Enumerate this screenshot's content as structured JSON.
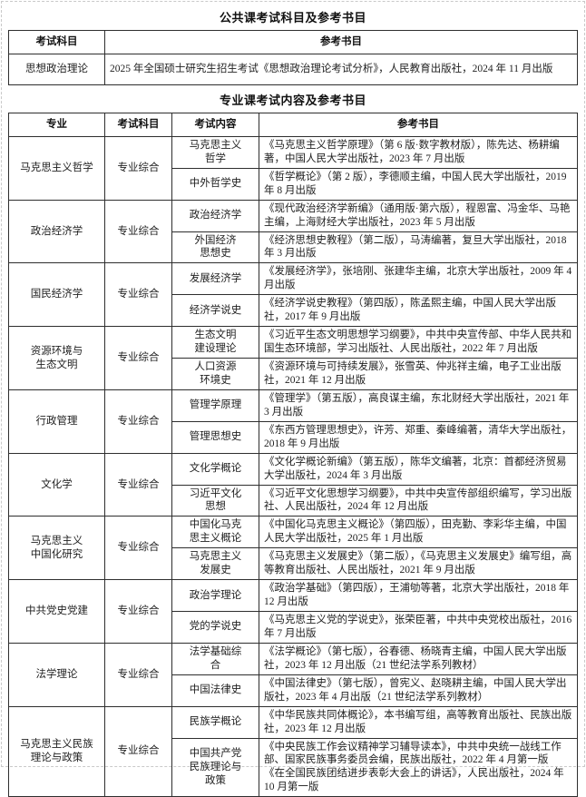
{
  "titles": {
    "public": "公共课考试科目及参考书目",
    "professional": "专业课考试内容及参考书目"
  },
  "public_table": {
    "headers": [
      "考试科目",
      "参考书目"
    ],
    "rows": [
      {
        "subject": "思想政治理论",
        "books": "2025 年全国硕士研究生招生考试《思想政治理论考试分析》，人民教育出版社，2024 年 11 月出版"
      }
    ]
  },
  "professional_table": {
    "headers": [
      "专业",
      "考试科目",
      "考试内容",
      "参考书目"
    ],
    "groups": [
      {
        "major": "马克思主义哲学",
        "exam_subject": "专业综合",
        "contents": [
          {
            "content": "马克思主义\n哲学",
            "books": "《马克思主义哲学原理》（第 6 版·数字教材版），陈先达、杨耕编著，中国人民大学出版社，2023 年 7 月出版"
          },
          {
            "content": "中外哲学史",
            "books": "《哲学概论》（第 2 版），李德顺主编，中国人民大学出版社，2019 年 8 月出版"
          }
        ]
      },
      {
        "major": "政治经济学",
        "exam_subject": "专业综合",
        "contents": [
          {
            "content": "政治经济学",
            "books": "《现代政治经济学新编》（通用版·第六版），程恩富、冯金华、马艳主编，上海财经大学出版社，2023 年 5 月出版"
          },
          {
            "content": "外国经济\n思想史",
            "books": "《经济思想史教程》（第二版），马涛编著，复旦大学出版社，2018 年 3 月出版"
          }
        ]
      },
      {
        "major": "国民经济学",
        "exam_subject": "专业综合",
        "contents": [
          {
            "content": "发展经济学",
            "books": "《发展经济学》，张培刚、张建华主编，北京大学出版社，2009 年 4 月出版"
          },
          {
            "content": "经济学说史",
            "books": "《经济学说史教程》（第四版），陈孟熙主编，中国人民大学出版社，2017 年 9 月出版"
          }
        ]
      },
      {
        "major": "资源环境与\n生态文明",
        "exam_subject": "专业综合",
        "contents": [
          {
            "content": "生态文明\n建设理论",
            "books": "《习近平生态文明思想学习纲要》，中共中央宣传部、中华人民共和国生态环境部，学习出版社、人民出版社，2022 年 7 月出版"
          },
          {
            "content": "人口资源\n环境史",
            "books": "《资源环境与可持续发展》，张雪英、仲兆祥主编，电子工业出版社，2021 年 12 月出版"
          }
        ]
      },
      {
        "major": "行政管理",
        "exam_subject": "专业综合",
        "contents": [
          {
            "content": "管理学原理",
            "books": "《管理学》（第五版），高良谋主编，东北财经大学出版社，2021 年 3 月出版"
          },
          {
            "content": "管理思想史",
            "books": "《东西方管理思想史》，许芳、郑重、秦峰编著，清华大学出版社，2018 年 9 月出版"
          }
        ]
      },
      {
        "major": "文化学",
        "exam_subject": "专业综合",
        "contents": [
          {
            "content": "文化学概论",
            "books": "《文化学概论新编》（第五版），陈华文编著，北京：首都经济贸易大学出版社，2024 年 3 月出版"
          },
          {
            "content": "习近平文化\n思想",
            "books": "《习近平文化思想学习纲要》，中共中央宣传部组织编写，学习出版社、人民出版社，2024 年 12 月出版"
          }
        ]
      },
      {
        "major": "马克思主义\n中国化研究",
        "exam_subject": "专业综合",
        "contents": [
          {
            "content": "中国化马克\n思主义概论",
            "books": "《中国化马克思主义概论》（第四版），田克勤、李彩华主编，中国人民大学出版社，2025 年 1 月出版"
          },
          {
            "content": "马克思主义\n发展史",
            "books": "《马克思主义发展史》（第二版），《马克思主义发展史》编写组，高等教育出版社、人民出版社，2021 年 9 月出版"
          }
        ]
      },
      {
        "major": "中共党史党建",
        "exam_subject": "专业综合",
        "contents": [
          {
            "content": "政治学理论",
            "books": "《政治学基础》（第四版），王浦劬等著，北京大学出版社，2018 年 12 月出版"
          },
          {
            "content": "党的学说史",
            "books": "《马克思主义党的学说史》，张荣臣著，中共中央党校出版社，2016 年 7 月出版"
          }
        ]
      },
      {
        "major": "法学理论",
        "exam_subject": "专业综合",
        "contents": [
          {
            "content": "法学基础综\n合",
            "books": "《法学概论》（第七版），谷春德、杨晓青主编，中国人民大学出版社，2023 年 12 月出版（21 世纪法学系列教材）"
          },
          {
            "content": "中国法律史",
            "books": "《中国法律史》（第七版），曾宪义、赵晓耕主编，中国人民大学出版社，2023 年 4 月出版（21 世纪法学系列教材）"
          }
        ]
      },
      {
        "major": "马克思主义民族\n理论与政策",
        "exam_subject": "专业综合",
        "contents": [
          {
            "content": "民族学概论",
            "books": "《中华民族共同体概论》，本书编写组，高等教育出版社、民族出版社，2023 年 12 月出版"
          },
          {
            "content": "中国共产党\n民族理论与\n政策",
            "books": "《中央民族工作会议精神学习辅导读本》，中共中央统一战线工作部、国家民族事务委员会编，民族出版社，2022 年 4 月第一版\n《在全国民族团结进步表彰大会上的讲话》，人民出版社，2024 年 10 月第一版"
          }
        ]
      }
    ]
  }
}
